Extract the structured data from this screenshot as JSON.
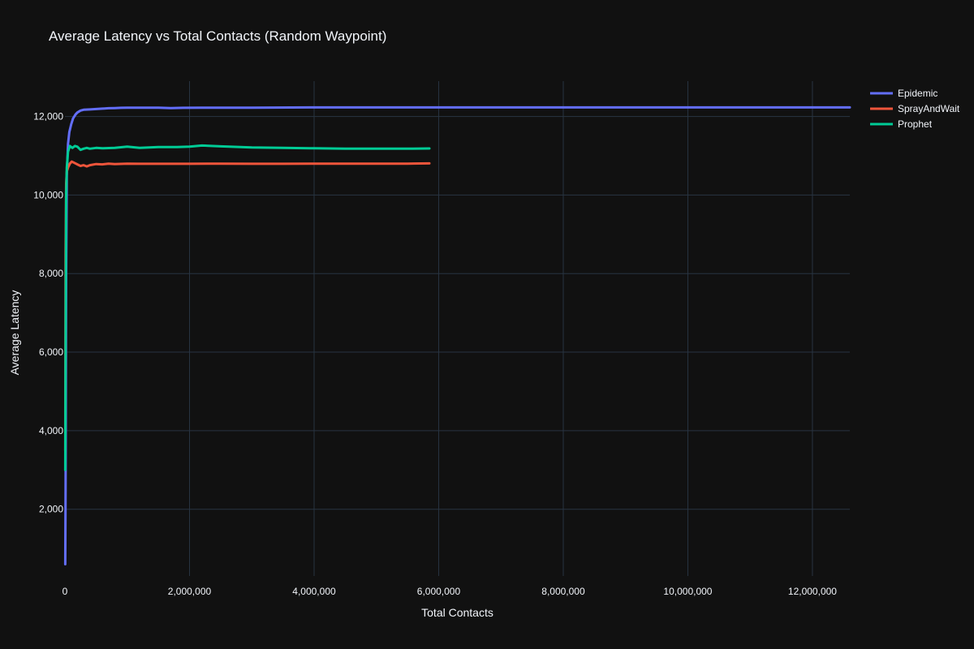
{
  "chart_data": {
    "type": "line",
    "title": "Average Latency vs Total Contacts (Random Waypoint)",
    "xlabel": "Total Contacts",
    "ylabel": "Average Latency",
    "xlim": [
      0,
      12600000
    ],
    "ylim": [
      300,
      12900
    ],
    "x_ticks": [
      0,
      2000000,
      4000000,
      6000000,
      8000000,
      10000000,
      12000000
    ],
    "x_tick_labels": [
      "0",
      "2,000,000",
      "4,000,000",
      "6,000,000",
      "8,000,000",
      "10,000,000",
      "12,000,000"
    ],
    "y_ticks": [
      2000,
      4000,
      6000,
      8000,
      10000,
      12000
    ],
    "y_tick_labels": [
      "2,000",
      "4,000",
      "6,000",
      "8,000",
      "10,000",
      "12,000"
    ],
    "grid": true,
    "legend_position": "top-right",
    "series": [
      {
        "name": "Epidemic",
        "color": "#636efa",
        "x": [
          5000,
          10000,
          20000,
          30000,
          50000,
          70000,
          100000,
          130000,
          170000,
          200000,
          250000,
          300000,
          400000,
          500000,
          600000,
          700000,
          800000,
          900000,
          1000000,
          1200000,
          1500000,
          1700000,
          1900000,
          2200000,
          2500000,
          3000000,
          4000000,
          5000000,
          6000000,
          7000000,
          8000000,
          9000000,
          10000000,
          11000000,
          12000000,
          12600000
        ],
        "y": [
          600,
          2500,
          8000,
          10500,
          11300,
          11600,
          11800,
          11950,
          12050,
          12100,
          12150,
          12170,
          12180,
          12190,
          12200,
          12210,
          12215,
          12220,
          12225,
          12225,
          12225,
          12215,
          12220,
          12225,
          12225,
          12225,
          12230,
          12230,
          12230,
          12230,
          12230,
          12230,
          12230,
          12230,
          12230,
          12230
        ]
      },
      {
        "name": "SprayAndWait",
        "color": "#ef553b",
        "x": [
          5000,
          10000,
          20000,
          30000,
          50000,
          80000,
          110000,
          150000,
          200000,
          250000,
          300000,
          350000,
          400000,
          500000,
          600000,
          700000,
          800000,
          1000000,
          1200000,
          1500000,
          2000000,
          2500000,
          3000000,
          3500000,
          4000000,
          4500000,
          5000000,
          5500000,
          5850000
        ],
        "y": [
          3500,
          8500,
          10300,
          10600,
          10700,
          10800,
          10850,
          10820,
          10780,
          10740,
          10760,
          10730,
          10760,
          10790,
          10780,
          10800,
          10790,
          10800,
          10795,
          10795,
          10795,
          10800,
          10795,
          10795,
          10800,
          10800,
          10800,
          10800,
          10805
        ]
      },
      {
        "name": "Prophet",
        "color": "#00cc96",
        "x": [
          5000,
          10000,
          20000,
          30000,
          50000,
          80000,
          120000,
          160000,
          200000,
          250000,
          300000,
          350000,
          400000,
          500000,
          600000,
          800000,
          1000000,
          1200000,
          1500000,
          1800000,
          2000000,
          2200000,
          2500000,
          3000000,
          3500000,
          4000000,
          4500000,
          5000000,
          5500000,
          5850000
        ],
        "y": [
          3000,
          6000,
          10000,
          10700,
          11100,
          11250,
          11200,
          11250,
          11230,
          11150,
          11180,
          11200,
          11180,
          11200,
          11190,
          11200,
          11230,
          11200,
          11220,
          11220,
          11230,
          11260,
          11240,
          11210,
          11200,
          11190,
          11180,
          11180,
          11180,
          11185
        ]
      }
    ]
  }
}
